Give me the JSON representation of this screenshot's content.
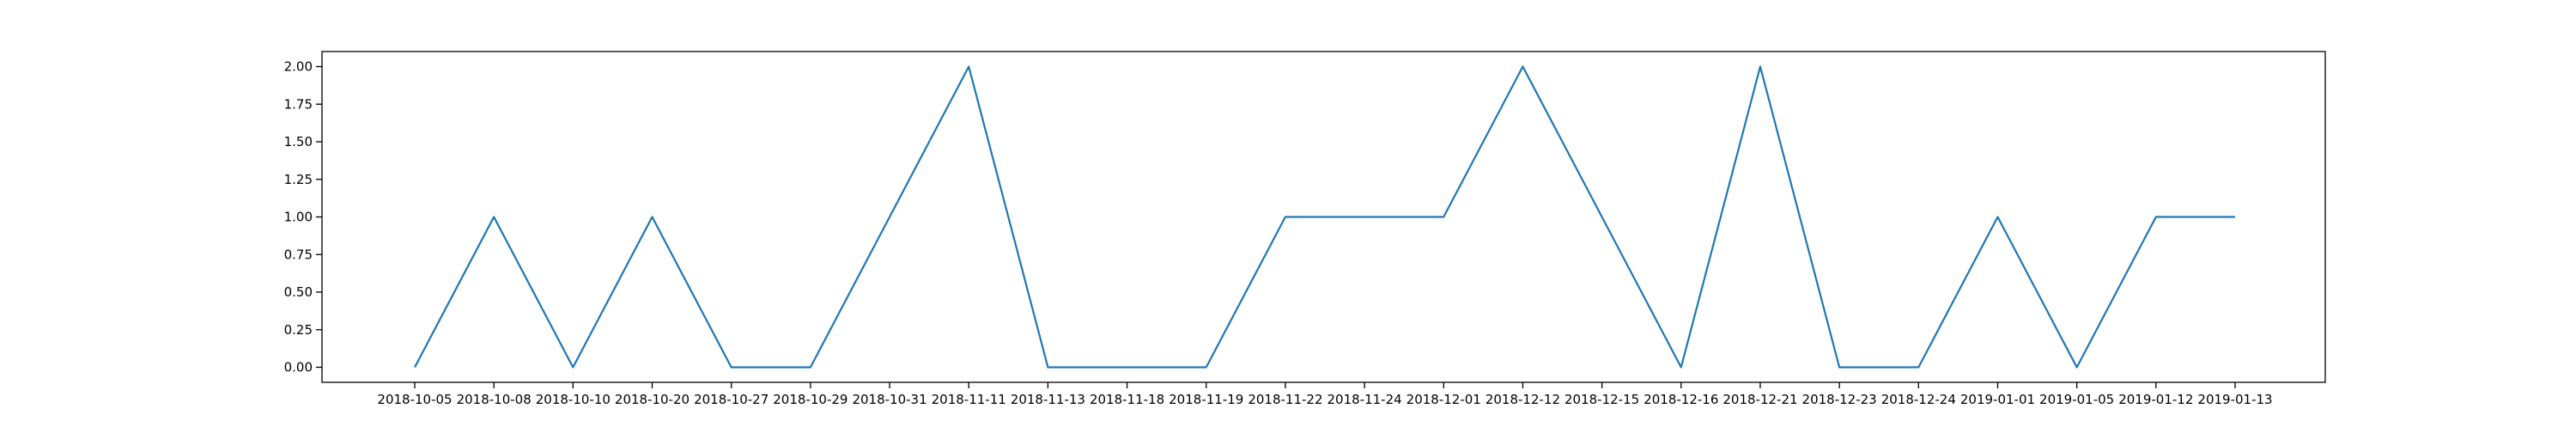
{
  "chart_data": {
    "type": "line",
    "title": "",
    "xlabel": "",
    "ylabel": "",
    "categories": [
      "2018-10-05",
      "2018-10-08",
      "2018-10-10",
      "2018-10-20",
      "2018-10-27",
      "2018-10-29",
      "2018-10-31",
      "2018-11-11",
      "2018-11-13",
      "2018-11-18",
      "2018-11-19",
      "2018-11-22",
      "2018-11-24",
      "2018-12-01",
      "2018-12-12",
      "2018-12-15",
      "2018-12-16",
      "2018-12-21",
      "2018-12-23",
      "2018-12-24",
      "2019-01-01",
      "2019-01-05",
      "2019-01-12",
      "2019-01-13"
    ],
    "series": [
      {
        "values": [
          0,
          1,
          0,
          1,
          0,
          0,
          1,
          2,
          0,
          0,
          0,
          1,
          1,
          1,
          2,
          1,
          0,
          2,
          0,
          0,
          1,
          0,
          1,
          1
        ],
        "color": "#1f77b4"
      }
    ],
    "ylim": [
      -0.1,
      2.1
    ],
    "yticks": [
      "0.00",
      "0.25",
      "0.50",
      "0.75",
      "1.00",
      "1.25",
      "1.50",
      "1.75",
      "2.00"
    ],
    "grid": false,
    "legend": "none"
  }
}
